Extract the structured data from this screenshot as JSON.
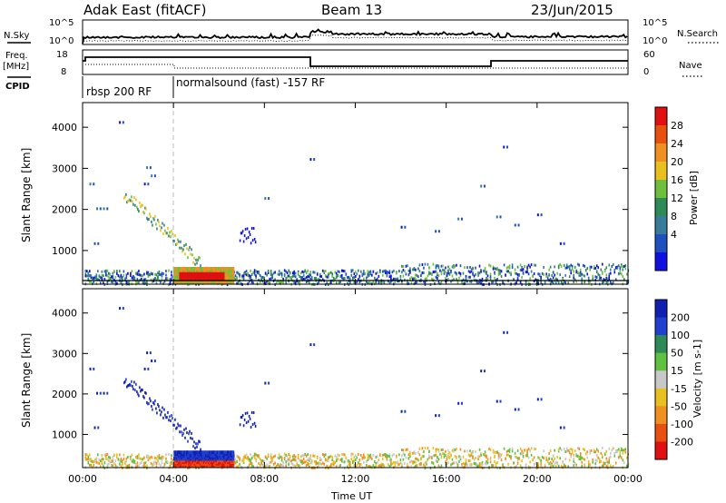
{
  "header": {
    "title": "Adak East (fitACF)",
    "beam": "Beam 13",
    "date": "23/Jun/2015"
  },
  "left_labels": {
    "nsky": "N.Sky",
    "freq": "Freq.",
    "mhz": "[MHz]",
    "cpid": "CPID"
  },
  "right_labels": {
    "nsearch": "N.Search",
    "nave": "Nave"
  },
  "panel_ticks": {
    "noise_left": [
      "10^5",
      "10^0"
    ],
    "noise_right": [
      "10^5",
      "10^0"
    ],
    "freq_left": [
      "18",
      "8"
    ],
    "freq_right": [
      "60",
      "0"
    ]
  },
  "cpid_segments": [
    {
      "label": "rbsp 200 RF"
    },
    {
      "label": "normalsound (fast) -157 RF"
    }
  ],
  "colors": {
    "power_scale": [
      "#1010e0",
      "#2050c0",
      "#3a7a9a",
      "#2e8b57",
      "#6fbf3f",
      "#e8c020",
      "#f09020",
      "#e85010",
      "#e01010"
    ],
    "velocity_scale": [
      "#1020b0",
      "#2040d0",
      "#2e8b57",
      "#60c040",
      "#c8c8c8",
      "#e8c020",
      "#f09020",
      "#e85010",
      "#e01010"
    ]
  },
  "chart_data": [
    {
      "type": "heatmap",
      "name": "power",
      "ylabel": "Slant Range [km]",
      "y_ticks": [
        "1000",
        "2000",
        "3000",
        "4000"
      ],
      "ylim": [
        180,
        4600
      ],
      "xlim": [
        "00:00",
        "24:00"
      ],
      "x_ticks": [
        "00:00",
        "04:00",
        "08:00",
        "12:00",
        "16:00",
        "20:00",
        "00:00"
      ],
      "colorbar_label": "Power [dB]",
      "colorbar_ticks": [
        "4",
        "8",
        "12",
        "16",
        "20",
        "24",
        "28"
      ],
      "colorbar_range": [
        0,
        30
      ],
      "cpid_change_time": "04:00"
    },
    {
      "type": "heatmap",
      "name": "velocity",
      "ylabel": "Slant Range [km]",
      "y_ticks": [
        "1000",
        "2000",
        "3000",
        "4000"
      ],
      "ylim": [
        180,
        4600
      ],
      "xlim": [
        "00:00",
        "24:00"
      ],
      "x_ticks": [
        "00:00",
        "04:00",
        "08:00",
        "12:00",
        "16:00",
        "20:00",
        "00:00"
      ],
      "xlabel": "Time UT",
      "colorbar_label": "Velocity [m s-1]",
      "colorbar_ticks": [
        "200",
        "100",
        "50",
        "15",
        "-15",
        "-50",
        "-100",
        "-200"
      ]
    }
  ]
}
